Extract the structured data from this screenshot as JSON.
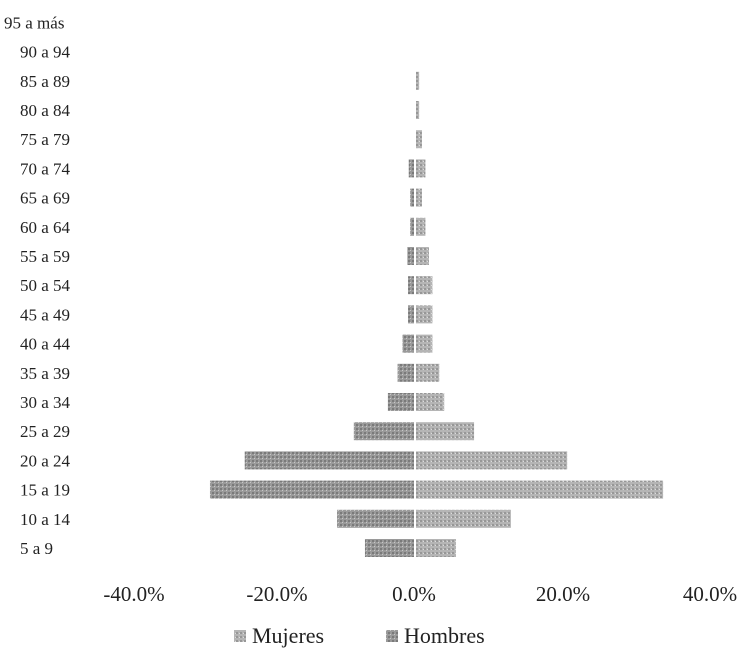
{
  "chart_data": {
    "type": "bar",
    "orientation": "horizontal",
    "subtype": "population-pyramid",
    "title": "",
    "xlabel": "",
    "ylabel": "",
    "xlim": [
      -40,
      40
    ],
    "x_tick_labels": [
      "-40.0%",
      "-20.0%",
      "0.0%",
      "20.0%",
      "40.0%"
    ],
    "categories": [
      "5  a 9",
      "10 a 14",
      "15 a 19",
      "20 a 24",
      "25 a 29",
      "30 a 34",
      "35 a 39",
      "40 a 44",
      "45 a 49",
      "50 a 54",
      "55 a 59",
      "60 a 64",
      "65 a 69",
      "70 a 74",
      "75 a 79",
      "80 a 84",
      "85 a 89",
      "90 a 94",
      "95 a más"
    ],
    "series": [
      {
        "name": "Mujeres",
        "color": "#b8b8b8",
        "side": "right",
        "values": [
          5.9,
          13.8,
          35.7,
          21.9,
          8.5,
          4.2,
          3.5,
          2.5,
          2.5,
          2.5,
          2.0,
          1.5,
          1.0,
          1.5,
          1.0,
          0.6,
          0.6,
          0,
          0
        ]
      },
      {
        "name": "Hombres",
        "color": "#8f8f8f",
        "side": "left",
        "values": [
          -7.2,
          -11.2,
          -29.5,
          -24.5,
          -8.8,
          -3.9,
          -2.5,
          -1.8,
          -1.0,
          -1.0,
          -1.1,
          -0.7,
          -0.7,
          -0.9,
          0,
          0,
          0,
          0,
          0
        ]
      }
    ],
    "legend_position": "bottom",
    "grid": false
  }
}
